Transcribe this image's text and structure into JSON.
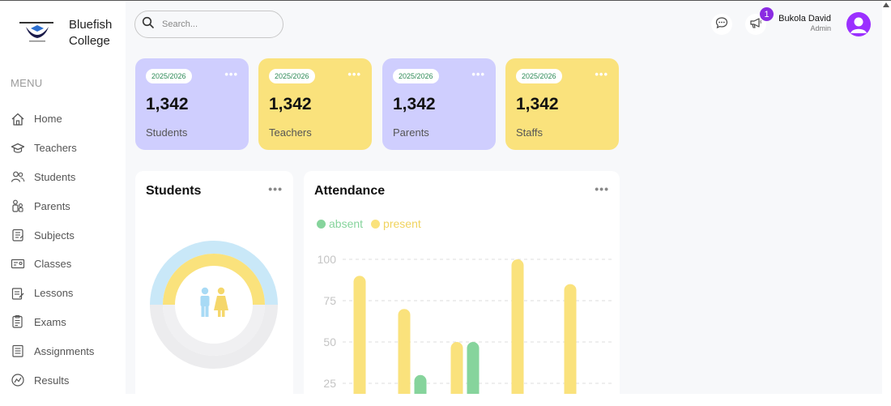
{
  "brand": {
    "name_line1": "Bluefish",
    "name_line2": "College"
  },
  "menu": {
    "title": "MENU",
    "items": [
      {
        "label": "Home",
        "icon": "home-icon"
      },
      {
        "label": "Teachers",
        "icon": "graduation-cap-icon"
      },
      {
        "label": "Students",
        "icon": "users-icon"
      },
      {
        "label": "Parents",
        "icon": "parents-icon"
      },
      {
        "label": "Subjects",
        "icon": "subjects-icon"
      },
      {
        "label": "Classes",
        "icon": "classes-icon"
      },
      {
        "label": "Lessons",
        "icon": "lessons-icon"
      },
      {
        "label": "Exams",
        "icon": "exams-icon"
      },
      {
        "label": "Assignments",
        "icon": "assignments-icon"
      },
      {
        "label": "Results",
        "icon": "results-icon"
      }
    ]
  },
  "header": {
    "search_placeholder": "Search...",
    "notification_count": "1",
    "user_name": "Bukola David",
    "user_role": "Admin"
  },
  "cards": [
    {
      "year": "2025/2026",
      "value": "1,342",
      "label": "Students",
      "color": "#cfcefe"
    },
    {
      "year": "2025/2026",
      "value": "1,342",
      "label": "Teachers",
      "color": "#fae27c"
    },
    {
      "year": "2025/2026",
      "value": "1,342",
      "label": "Parents",
      "color": "#cfcefe"
    },
    {
      "year": "2025/2026",
      "value": "1,342",
      "label": "Staffs",
      "color": "#fae27c"
    }
  ],
  "students_panel": {
    "title": "Students"
  },
  "attendance_panel": {
    "title": "Attendance"
  },
  "colors": {
    "accent": "#8a2be2",
    "purple_card": "#cfcefe",
    "yellow_card": "#fae27c",
    "absent": "#86d49c",
    "present": "#fae27c"
  },
  "chart_data": {
    "type": "bar",
    "title": "Attendance",
    "ylim": [
      0,
      100
    ],
    "yticks": [
      25,
      50,
      75,
      100
    ],
    "grid": true,
    "legend_position": "top-left",
    "series": [
      {
        "name": "absent",
        "color": "#86d49c",
        "values": [
          null,
          30,
          50,
          null,
          null
        ]
      },
      {
        "name": "present",
        "color": "#fae27c",
        "values": [
          90,
          70,
          50,
          100,
          85
        ]
      }
    ]
  }
}
